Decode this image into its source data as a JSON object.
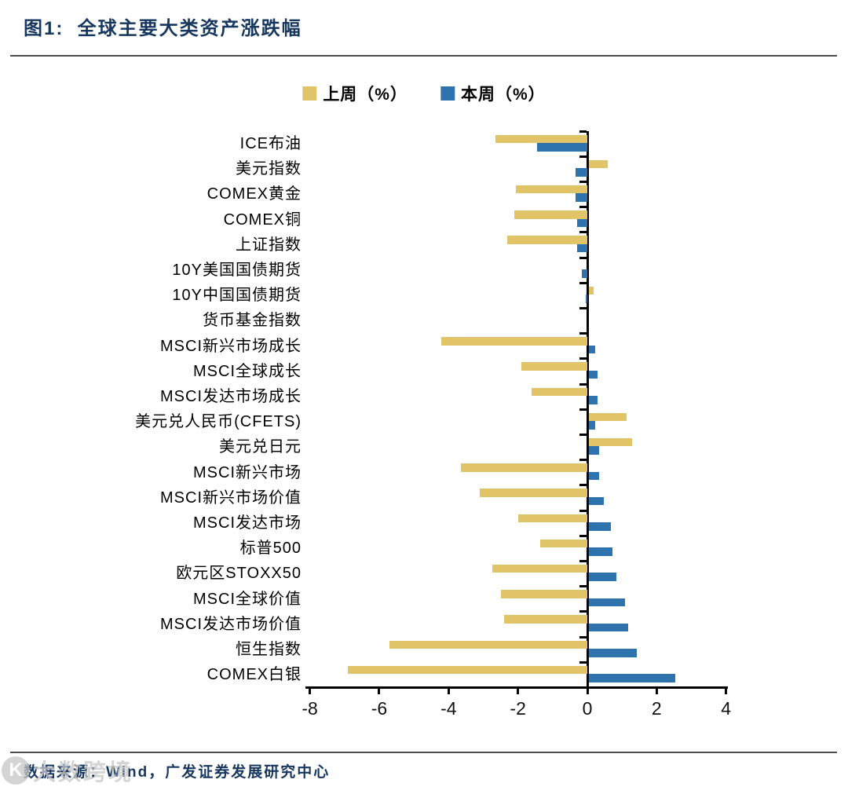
{
  "header": {
    "title": "图1:  全球主要大类资产涨跌幅"
  },
  "legend": {
    "items": [
      {
        "label": "上周（%）",
        "color": "#e2c468"
      },
      {
        "label": "本周（%）",
        "color": "#2e73ae"
      }
    ]
  },
  "chart_data": {
    "type": "bar",
    "orientation": "horizontal",
    "title": "全球主要大类资产涨跌幅",
    "xlabel": "",
    "ylabel": "",
    "xlim": [
      -8,
      4
    ],
    "xticks": [
      -8,
      -6,
      -4,
      -2,
      0,
      2,
      4
    ],
    "grid": false,
    "legend_position": "top",
    "categories": [
      "ICE布油",
      "美元指数",
      "COMEX黄金",
      "COMEX铜",
      "上证指数",
      "10Y美国国债期货",
      "10Y中国国债期货",
      "货币基金指数",
      "MSCI新兴市场成长",
      "MSCI全球成长",
      "MSCI发达市场成长",
      "美元兑人民币(CFETS)",
      "美元兑日元",
      "MSCI新兴市场",
      "MSCI新兴市场价值",
      "MSCI发达市场",
      "标普500",
      "欧元区STOXX50",
      "MSCI全球价值",
      "MSCI发达市场价值",
      "恒生指数",
      "COMEX白银"
    ],
    "series": [
      {
        "name": "上周（%）",
        "color": "#e2c468",
        "values": [
          -2.65,
          0.55,
          -2.05,
          -2.1,
          -2.3,
          0.0,
          0.15,
          0.0,
          -4.2,
          -1.9,
          -1.6,
          1.1,
          1.25,
          -3.65,
          -3.1,
          -2.0,
          -1.35,
          -2.75,
          -2.5,
          -2.4,
          -5.7,
          -6.9
        ]
      },
      {
        "name": "本周（%）",
        "color": "#2e73ae",
        "values": [
          -1.45,
          -0.35,
          -0.35,
          -0.3,
          -0.3,
          -0.15,
          -0.05,
          0.0,
          0.2,
          0.25,
          0.25,
          0.2,
          0.3,
          0.3,
          0.45,
          0.65,
          0.7,
          0.8,
          1.05,
          1.15,
          1.4,
          2.5
        ]
      }
    ]
  },
  "footer": {
    "source": "数据来源：Wind，广发证券发展研究中心"
  },
  "watermark": {
    "icon": "K",
    "text": "大数跨境"
  }
}
